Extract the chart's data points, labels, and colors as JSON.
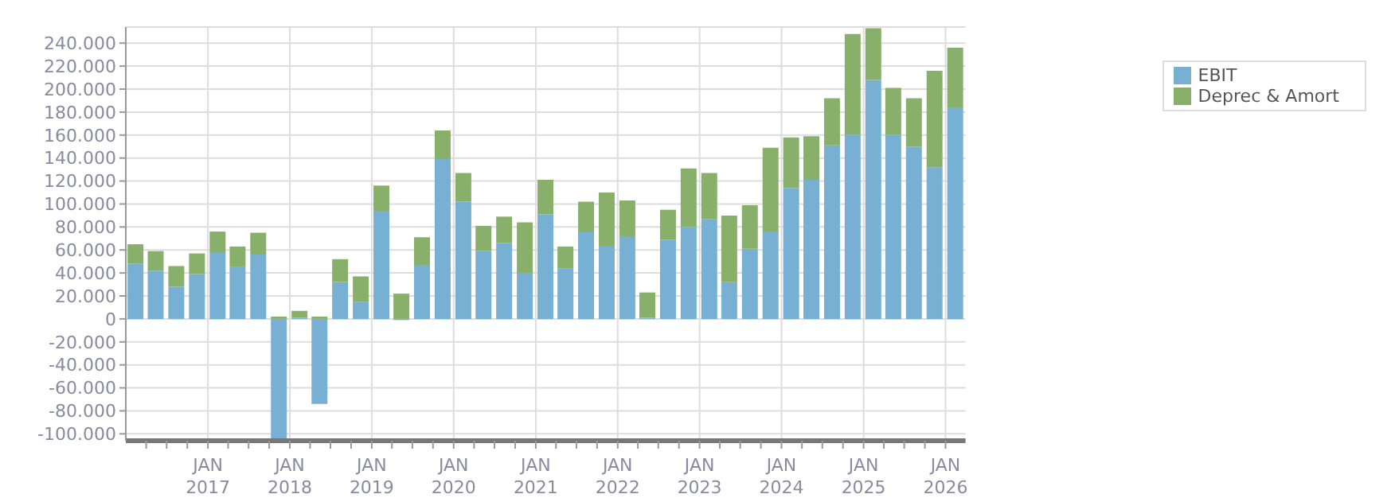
{
  "chart_data": {
    "type": "bar",
    "stacked": true,
    "x": [
      "2016-02-15",
      "2016-05-15",
      "2016-08-15",
      "2016-11-15",
      "2017-02-15",
      "2017-05-15",
      "2017-08-15",
      "2017-11-15",
      "2018-02-15",
      "2018-05-15",
      "2018-08-15",
      "2018-11-15",
      "2019-02-15",
      "2019-05-15",
      "2019-08-15",
      "2019-11-15",
      "2020-02-15",
      "2020-05-15",
      "2020-08-15",
      "2020-11-15",
      "2021-02-15",
      "2021-05-15",
      "2021-08-15",
      "2021-11-15",
      "2022-02-15",
      "2022-05-15",
      "2022-08-15",
      "2022-11-15",
      "2023-02-15",
      "2023-05-15",
      "2023-08-15",
      "2023-11-15",
      "2024-02-15",
      "2024-05-15",
      "2024-08-15",
      "2024-11-15",
      "2025-02-15",
      "2025-05-15",
      "2025-08-15",
      "2025-11-15",
      "2026-02-15"
    ],
    "series": [
      {
        "name": "EBIT",
        "color": "#77b0d3",
        "values": [
          48000,
          42000,
          28000,
          39000,
          58000,
          45000,
          56000,
          -106000,
          1000,
          -74000,
          32000,
          15000,
          94000,
          -1000,
          47000,
          139000,
          102000,
          59000,
          66000,
          40000,
          91000,
          44000,
          76000,
          63000,
          72000,
          1000,
          69000,
          80000,
          87000,
          32000,
          61000,
          76000,
          114000,
          121000,
          151000,
          160000,
          208000,
          160000,
          150000,
          132000,
          184000
        ]
      },
      {
        "name": "Deprec & Amort",
        "color": "#88b06a",
        "values": [
          17000,
          17000,
          18000,
          18000,
          18000,
          18000,
          19000,
          2000,
          6000,
          2000,
          20000,
          22000,
          22000,
          22000,
          24000,
          25000,
          25000,
          22000,
          23000,
          44000,
          30000,
          19000,
          26000,
          47000,
          31000,
          22000,
          26000,
          51000,
          40000,
          58000,
          38000,
          73000,
          44000,
          38000,
          41000,
          88000,
          45000,
          41000,
          42000,
          84000,
          52000
        ]
      }
    ],
    "xlim": [
      "2016-01-01",
      "2026-03-31"
    ],
    "xticks": [
      {
        "value": "2016-04-01",
        "label": null
      },
      {
        "value": "2016-07-01",
        "label": null
      },
      {
        "value": "2016-10-01",
        "label": null
      },
      {
        "value": "2017-01-01",
        "label": "JAN 2017"
      },
      {
        "value": "2017-04-01",
        "label": null
      },
      {
        "value": "2017-07-01",
        "label": null
      },
      {
        "value": "2017-10-01",
        "label": null
      },
      {
        "value": "2018-01-01",
        "label": "JAN 2018"
      },
      {
        "value": "2018-04-01",
        "label": null
      },
      {
        "value": "2018-07-01",
        "label": null
      },
      {
        "value": "2018-10-01",
        "label": null
      },
      {
        "value": "2019-01-01",
        "label": "JAN 2019"
      },
      {
        "value": "2019-04-01",
        "label": null
      },
      {
        "value": "2019-07-01",
        "label": null
      },
      {
        "value": "2019-10-01",
        "label": null
      },
      {
        "value": "2020-01-01",
        "label": "JAN 2020"
      },
      {
        "value": "2020-04-01",
        "label": null
      },
      {
        "value": "2020-07-01",
        "label": null
      },
      {
        "value": "2020-10-01",
        "label": null
      },
      {
        "value": "2021-01-01",
        "label": "JAN 2021"
      },
      {
        "value": "2021-04-01",
        "label": null
      },
      {
        "value": "2021-07-01",
        "label": null
      },
      {
        "value": "2021-10-01",
        "label": null
      },
      {
        "value": "2022-01-01",
        "label": "JAN 2022"
      },
      {
        "value": "2022-04-01",
        "label": null
      },
      {
        "value": "2022-07-01",
        "label": null
      },
      {
        "value": "2022-10-01",
        "label": null
      },
      {
        "value": "2023-01-01",
        "label": "JAN 2023"
      },
      {
        "value": "2023-04-01",
        "label": null
      },
      {
        "value": "2023-07-01",
        "label": null
      },
      {
        "value": "2023-10-01",
        "label": null
      },
      {
        "value": "2024-01-01",
        "label": "JAN 2024"
      },
      {
        "value": "2024-04-01",
        "label": null
      },
      {
        "value": "2024-07-01",
        "label": null
      },
      {
        "value": "2024-10-01",
        "label": null
      },
      {
        "value": "2025-01-01",
        "label": "JAN 2025"
      },
      {
        "value": "2025-04-01",
        "label": null
      },
      {
        "value": "2025-07-01",
        "label": null
      },
      {
        "value": "2025-10-01",
        "label": null
      },
      {
        "value": "2026-01-01",
        "label": "JAN 2026"
      }
    ],
    "ylim": [
      -106000,
      254000
    ],
    "yticks": [
      {
        "value": -100000,
        "label": "-100.000"
      },
      {
        "value": -80000,
        "label": "-80.000"
      },
      {
        "value": -60000,
        "label": "-60.000"
      },
      {
        "value": -40000,
        "label": "-40.000"
      },
      {
        "value": -20000,
        "label": "-20.000"
      },
      {
        "value": 0,
        "label": "0"
      },
      {
        "value": 20000,
        "label": "20.000"
      },
      {
        "value": 40000,
        "label": "40.000"
      },
      {
        "value": 60000,
        "label": "60.000"
      },
      {
        "value": 80000,
        "label": "80.000"
      },
      {
        "value": 100000,
        "label": "100.000"
      },
      {
        "value": 120000,
        "label": "120.000"
      },
      {
        "value": 140000,
        "label": "140.000"
      },
      {
        "value": 160000,
        "label": "160.000"
      },
      {
        "value": 180000,
        "label": "180.000"
      },
      {
        "value": 200000,
        "label": "200.000"
      },
      {
        "value": 220000,
        "label": "220.000"
      },
      {
        "value": 240000,
        "label": "240.000"
      }
    ],
    "grid": true,
    "legend": "top right"
  }
}
